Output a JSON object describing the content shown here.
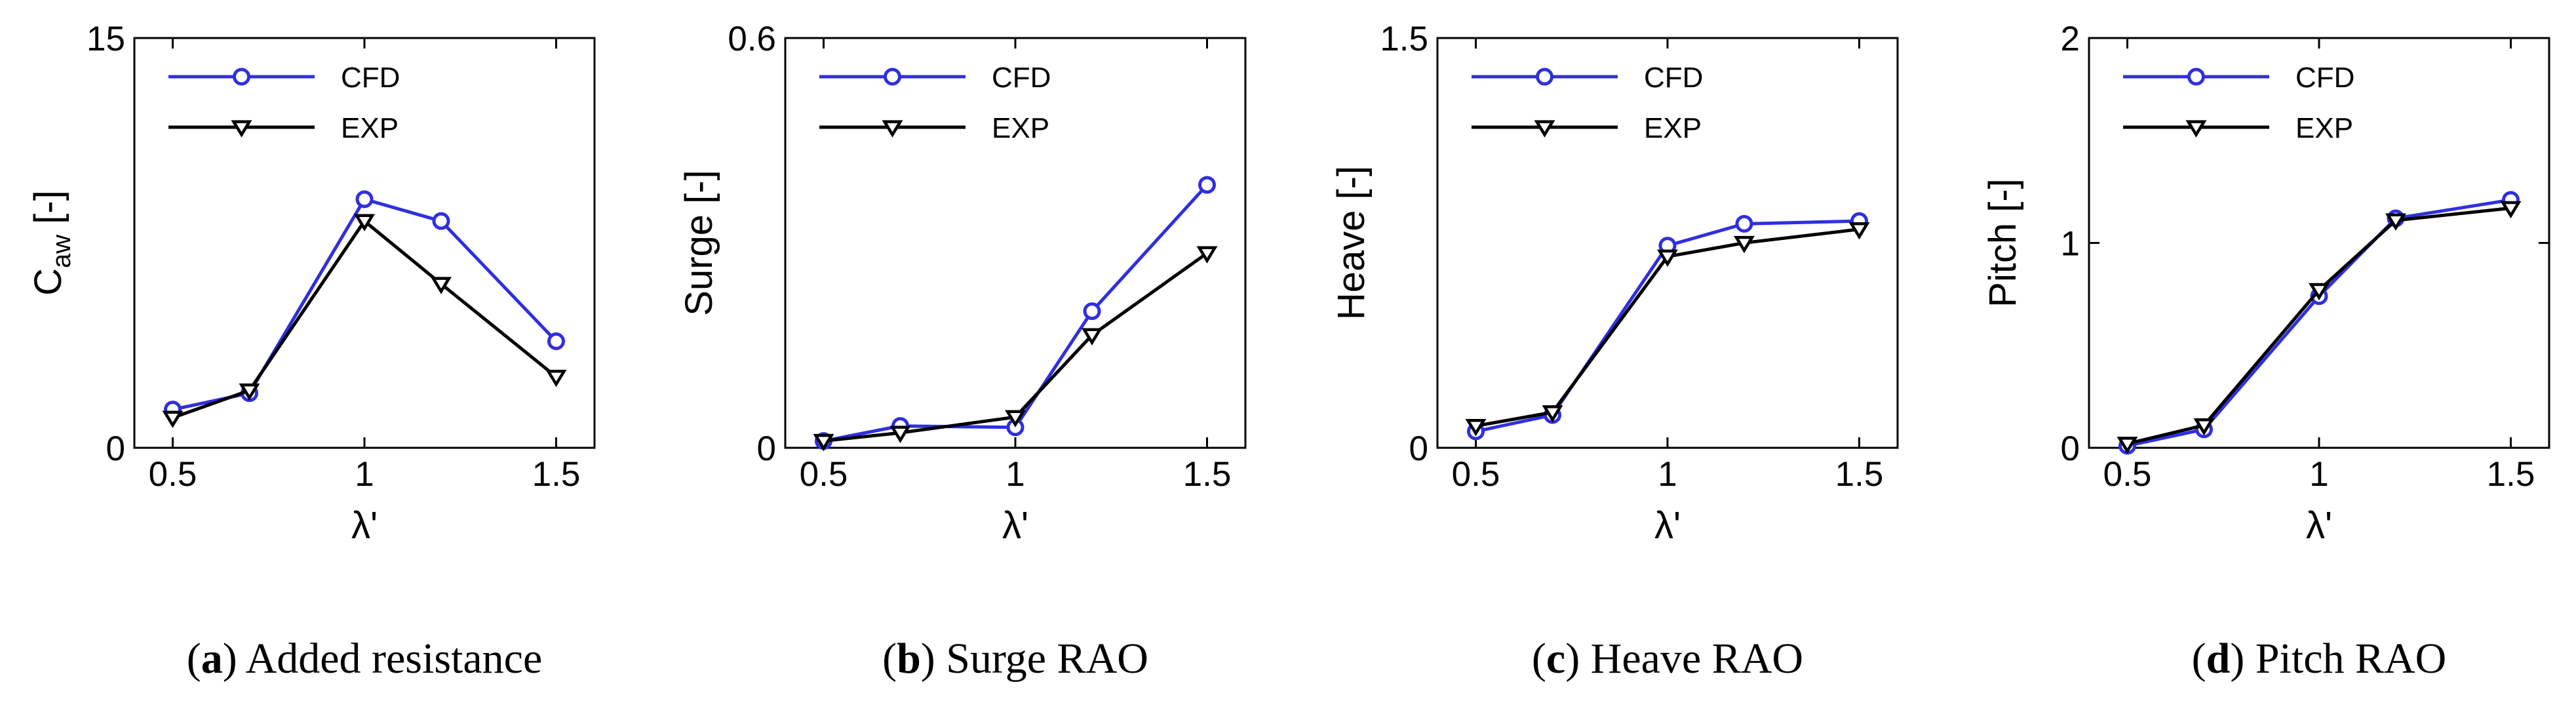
{
  "chart_data": [
    {
      "type": "line",
      "panel_letter": "a",
      "caption": "Added resistance",
      "xlabel": "λ'",
      "ylabel_main": "C",
      "ylabel_sub": "aw",
      "ylabel_unit": " [-]",
      "xlim": [
        0.4,
        1.6
      ],
      "ylim": [
        0,
        15
      ],
      "xticks": [
        "0.5",
        "1",
        "1.5"
      ],
      "xtick_values": [
        0.5,
        1,
        1.5
      ],
      "yticks": [
        "0",
        "15"
      ],
      "ytick_values": [
        0,
        15
      ],
      "legend_position": "top-left",
      "series": [
        {
          "name": "CFD",
          "color": "#2f2fe0",
          "marker": "circle",
          "x": [
            0.5,
            0.7,
            1.0,
            1.2,
            1.5
          ],
          "y": [
            1.4,
            2.0,
            9.1,
            8.3,
            3.9
          ]
        },
        {
          "name": "EXP",
          "color": "#000000",
          "marker": "triangle-down",
          "x": [
            0.5,
            0.7,
            1.0,
            1.2,
            1.5
          ],
          "y": [
            1.1,
            2.1,
            8.3,
            6.0,
            2.6
          ]
        }
      ]
    },
    {
      "type": "line",
      "panel_letter": "b",
      "caption": "Surge RAO",
      "xlabel": "λ'",
      "ylabel_main": "Surge [-]",
      "ylabel_sub": "",
      "ylabel_unit": "",
      "xlim": [
        0.4,
        1.6
      ],
      "ylim": [
        0,
        0.6
      ],
      "xticks": [
        "0.5",
        "1",
        "1.5"
      ],
      "xtick_values": [
        0.5,
        1,
        1.5
      ],
      "yticks": [
        "0",
        "0.6"
      ],
      "ytick_values": [
        0,
        0.6
      ],
      "legend_position": "top-left",
      "series": [
        {
          "name": "CFD",
          "color": "#2f2fe0",
          "marker": "circle",
          "x": [
            0.5,
            0.7,
            1.0,
            1.2,
            1.5
          ],
          "y": [
            0.01,
            0.032,
            0.03,
            0.2,
            0.385
          ]
        },
        {
          "name": "EXP",
          "color": "#000000",
          "marker": "triangle-down",
          "x": [
            0.5,
            0.7,
            1.0,
            1.2,
            1.5
          ],
          "y": [
            0.01,
            0.022,
            0.045,
            0.165,
            0.285
          ]
        }
      ]
    },
    {
      "type": "line",
      "panel_letter": "c",
      "caption": "Heave RAO",
      "xlabel": "λ'",
      "ylabel_main": "Heave [-]",
      "ylabel_sub": "",
      "ylabel_unit": "",
      "xlim": [
        0.4,
        1.6
      ],
      "ylim": [
        0,
        1.5
      ],
      "xticks": [
        "0.5",
        "1",
        "1.5"
      ],
      "xtick_values": [
        0.5,
        1,
        1.5
      ],
      "yticks": [
        "0",
        "1.5"
      ],
      "ytick_values": [
        0,
        1.5
      ],
      "legend_position": "top-left",
      "series": [
        {
          "name": "CFD",
          "color": "#2f2fe0",
          "marker": "circle",
          "x": [
            0.5,
            0.7,
            1.0,
            1.2,
            1.5
          ],
          "y": [
            0.06,
            0.12,
            0.74,
            0.82,
            0.83
          ]
        },
        {
          "name": "EXP",
          "color": "#000000",
          "marker": "triangle-down",
          "x": [
            0.5,
            0.7,
            1.0,
            1.2,
            1.5
          ],
          "y": [
            0.08,
            0.13,
            0.7,
            0.75,
            0.8
          ]
        }
      ]
    },
    {
      "type": "line",
      "panel_letter": "d",
      "caption": "Pitch RAO",
      "xlabel": "λ'",
      "ylabel_main": "Pitch [-]",
      "ylabel_sub": "",
      "ylabel_unit": "",
      "xlim": [
        0.4,
        1.6
      ],
      "ylim": [
        0,
        2
      ],
      "xticks": [
        "0.5",
        "1",
        "1.5"
      ],
      "xtick_values": [
        0.5,
        1,
        1.5
      ],
      "yticks": [
        "0",
        "1",
        "2"
      ],
      "ytick_values": [
        0,
        1,
        2
      ],
      "legend_position": "top-left",
      "series": [
        {
          "name": "CFD",
          "color": "#2f2fe0",
          "marker": "circle",
          "x": [
            0.5,
            0.7,
            1.0,
            1.2,
            1.5
          ],
          "y": [
            0.01,
            0.09,
            0.74,
            1.12,
            1.21
          ]
        },
        {
          "name": "EXP",
          "color": "#000000",
          "marker": "triangle-down",
          "x": [
            0.5,
            0.7,
            1.0,
            1.2,
            1.5
          ],
          "y": [
            0.02,
            0.11,
            0.77,
            1.11,
            1.17
          ]
        }
      ]
    }
  ]
}
